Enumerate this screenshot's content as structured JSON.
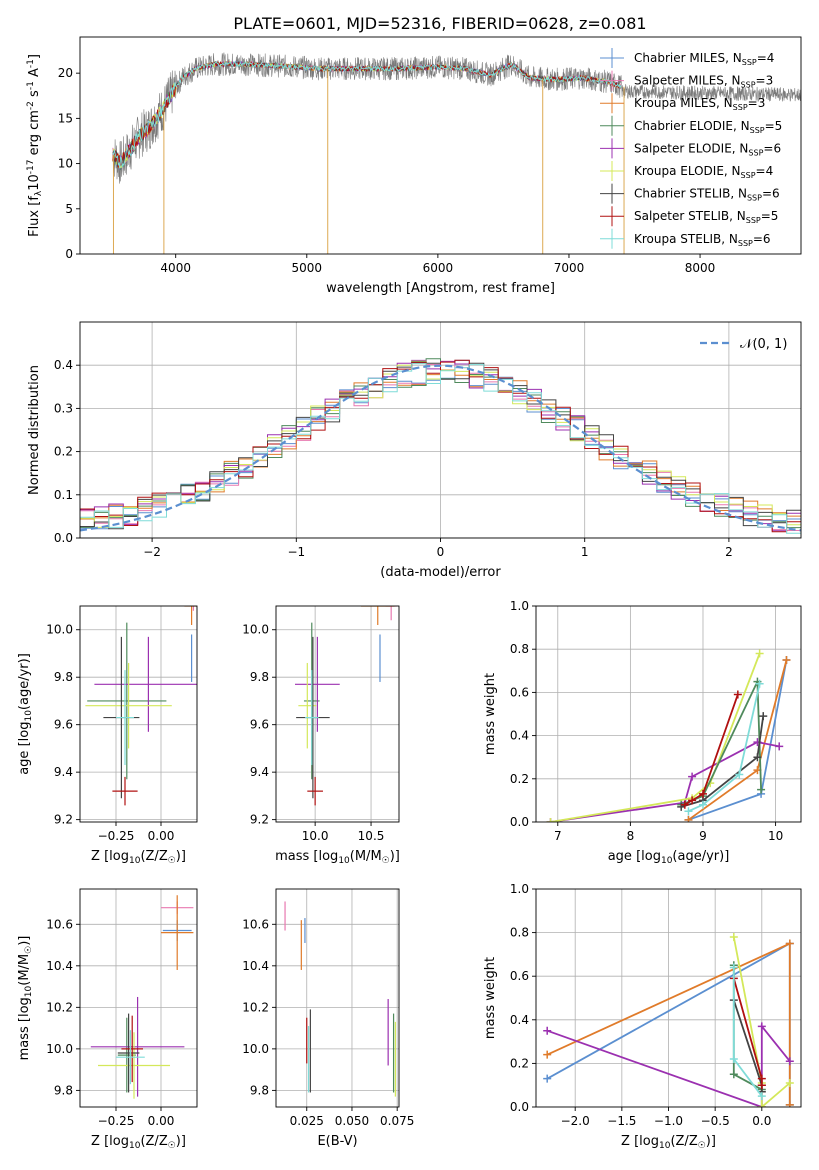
{
  "figure_title": "PLATE=0601, MJD=52316, FIBERID=0628, z=0.081",
  "colors": {
    "Chabrier MILES": "#5b8fd0",
    "Salpeter MILES": "#e879b0",
    "Kroupa MILES": "#e07b2a",
    "Chabrier ELODIE": "#4f8a5c",
    "Salpeter ELODIE": "#9b30b0",
    "Kroupa ELODIE": "#d4e85a",
    "Chabrier STELIB": "#444444",
    "Salpeter STELIB": "#b01010",
    "Kroupa STELIB": "#7fdcd8"
  },
  "chart_data": [
    {
      "id": "spectrum",
      "type": "line",
      "xlabel": "wavelength [Angstrom, rest frame]",
      "ylabel": "Flux [f_λ10^-17 erg cm^-2 s^-1 A^-1]",
      "xlim": [
        3270,
        8770
      ],
      "ylim": [
        0,
        24
      ],
      "xticks": [
        "4000",
        "5000",
        "6000",
        "7000",
        "8000"
      ],
      "yticks": [
        "0",
        "5",
        "10",
        "15",
        "20"
      ],
      "legend_location": "upper right",
      "legend": [
        {
          "name": "Chabrier MILES",
          "label": "Chabrier MILES, N",
          "sub": "SSP",
          "suffix": "=4"
        },
        {
          "name": "Salpeter MILES",
          "label": "Salpeter MILES, N",
          "sub": "SSP",
          "suffix": "=3"
        },
        {
          "name": "Kroupa MILES",
          "label": "Kroupa MILES, N",
          "sub": "SSP",
          "suffix": "=3"
        },
        {
          "name": "Chabrier ELODIE",
          "label": "Chabrier ELODIE, N",
          "sub": "SSP",
          "suffix": "=5"
        },
        {
          "name": "Salpeter ELODIE",
          "label": "Salpeter ELODIE, N",
          "sub": "SSP",
          "suffix": "=6"
        },
        {
          "name": "Kroupa ELODIE",
          "label": "Kroupa ELODIE, N",
          "sub": "SSP",
          "suffix": "=4"
        },
        {
          "name": "Chabrier STELIB",
          "label": "Chabrier STELIB, N",
          "sub": "SSP",
          "suffix": "=6"
        },
        {
          "name": "Salpeter STELIB",
          "label": "Salpeter STELIB, N",
          "sub": "SSP",
          "suffix": "=5"
        },
        {
          "name": "Kroupa STELIB",
          "label": "Kroupa STELIB, N",
          "sub": "SSP",
          "suffix": "=6"
        }
      ],
      "data_trace": {
        "name": "data",
        "color": "#7a7a7a",
        "x_range": [
          3520,
          8770
        ]
      },
      "model_continuum": {
        "x": [
          3520,
          3580,
          3650,
          3720,
          3800,
          3900,
          3960,
          4050,
          4150,
          4300,
          4500,
          4800,
          5100,
          5400,
          5700,
          6000,
          6200,
          6400,
          6560,
          6700,
          6900,
          7100,
          7300,
          7400
        ],
        "y": [
          11,
          10,
          11.5,
          13,
          14,
          16,
          17.5,
          19.5,
          20.5,
          21,
          21,
          20.8,
          20.5,
          20.5,
          20.5,
          20.7,
          20.5,
          19.8,
          21,
          19.5,
          19.3,
          19.5,
          19,
          18.5
        ]
      }
    },
    {
      "id": "residuals",
      "type": "line",
      "xlabel": "(data-model)/error",
      "ylabel": "Normed distribution",
      "xlim": [
        -2.5,
        2.5
      ],
      "ylim": [
        0,
        0.5
      ],
      "xticks": [
        "−2",
        "−1",
        "0",
        "1",
        "2"
      ],
      "yticks": [
        "0.0",
        "0.1",
        "0.2",
        "0.3",
        "0.4"
      ],
      "grid": true,
      "legend_location": "upper right",
      "reference_curve": {
        "name": "N(0,1)",
        "label": "𝒩(0, 1)",
        "color": "#5b8fd0",
        "style": "dashed"
      },
      "bin_width": 0.1
    },
    {
      "id": "age_vs_Z",
      "type": "scatter",
      "xlabel": "Z [log10(Z/Z☉)]",
      "ylabel": "age  [log10(age/yr)]",
      "xlim": [
        -0.45,
        0.2
      ],
      "ylim": [
        9.19,
        10.1
      ],
      "xticks": [
        "−0.25",
        "0.00"
      ],
      "yticks": [
        "9.2",
        "9.4",
        "9.6",
        "9.8",
        "10.0"
      ],
      "grid": true,
      "points": [
        {
          "series": "Chabrier MILES",
          "x": 0.17,
          "y": 9.88,
          "xerr": 0.0,
          "yerr": 0.1
        },
        {
          "series": "Salpeter MILES",
          "x": 0.18,
          "y": 10.1,
          "xerr": 0.0,
          "yerr": 0.02
        },
        {
          "series": "Kroupa MILES",
          "x": 0.17,
          "y": 10.1,
          "xerr": 0.04,
          "yerr": 0.08
        },
        {
          "series": "Chabrier ELODIE",
          "x": -0.19,
          "y": 9.7,
          "xerr": 0.22,
          "yerr": 0.33
        },
        {
          "series": "Salpeter ELODIE",
          "x": -0.07,
          "y": 9.77,
          "xerr": 0.3,
          "yerr": 0.2
        },
        {
          "series": "Kroupa ELODIE",
          "x": -0.18,
          "y": 9.68,
          "xerr": 0.24,
          "yerr": 0.18
        },
        {
          "series": "Chabrier STELIB",
          "x": -0.22,
          "y": 9.63,
          "xerr": 0.1,
          "yerr": 0.34
        },
        {
          "series": "Salpeter STELIB",
          "x": -0.2,
          "y": 9.32,
          "xerr": 0.07,
          "yerr": 0.06
        },
        {
          "series": "Kroupa STELIB",
          "x": -0.2,
          "y": 9.63,
          "xerr": 0.05,
          "yerr": 0.2
        }
      ]
    },
    {
      "id": "age_vs_mass",
      "type": "scatter",
      "xlabel": "mass [log10(M/M☉)]",
      "ylabel": "",
      "xlim": [
        9.65,
        10.75
      ],
      "ylim": [
        9.19,
        10.1
      ],
      "xticks": [
        "10.0",
        "10.5"
      ],
      "yticks": [
        "9.2",
        "9.4",
        "9.6",
        "9.8",
        "10.0"
      ],
      "grid": true,
      "points": [
        {
          "series": "Chabrier MILES",
          "x": 10.58,
          "y": 9.88,
          "xerr": 0.0,
          "yerr": 0.1
        },
        {
          "series": "Salpeter MILES",
          "x": 10.68,
          "y": 10.1,
          "xerr": 0.05,
          "yerr": 0.06
        },
        {
          "series": "Kroupa MILES",
          "x": 10.56,
          "y": 10.1,
          "xerr": 0.15,
          "yerr": 0.08
        },
        {
          "series": "Chabrier ELODIE",
          "x": 9.97,
          "y": 9.7,
          "xerr": 0.07,
          "yerr": 0.33
        },
        {
          "series": "Salpeter ELODIE",
          "x": 10.02,
          "y": 9.77,
          "xerr": 0.2,
          "yerr": 0.2
        },
        {
          "series": "Kroupa ELODIE",
          "x": 9.93,
          "y": 9.68,
          "xerr": 0.08,
          "yerr": 0.18
        },
        {
          "series": "Chabrier STELIB",
          "x": 9.98,
          "y": 9.63,
          "xerr": 0.15,
          "yerr": 0.34
        },
        {
          "series": "Salpeter STELIB",
          "x": 10.0,
          "y": 9.32,
          "xerr": 0.07,
          "yerr": 0.06
        },
        {
          "series": "Kroupa STELIB",
          "x": 9.97,
          "y": 9.63,
          "xerr": 0.06,
          "yerr": 0.2
        }
      ]
    },
    {
      "id": "massweight_vs_age",
      "type": "line",
      "xlabel": "age  [log10(age/yr)]",
      "ylabel": "mass weight",
      "xlim": [
        6.7,
        10.35
      ],
      "ylim": [
        0,
        1
      ],
      "xticks": [
        "7",
        "8",
        "9",
        "10"
      ],
      "yticks": [
        "0.0",
        "0.2",
        "0.4",
        "0.6",
        "0.8",
        "1.0"
      ],
      "grid": true,
      "series": [
        {
          "name": "Chabrier MILES",
          "x": [
            8.8,
            9.8,
            10.15
          ],
          "y": [
            0.01,
            0.13,
            0.75
          ]
        },
        {
          "name": "Kroupa MILES",
          "x": [
            8.8,
            9.75,
            10.15
          ],
          "y": [
            0.01,
            0.24,
            0.75
          ]
        },
        {
          "name": "Salpeter ELODIE",
          "x": [
            6.9,
            8.75,
            8.85,
            9.75,
            10.05
          ],
          "y": [
            0.0,
            0.09,
            0.21,
            0.37,
            0.35
          ]
        },
        {
          "name": "Kroupa ELODIE",
          "x": [
            6.9,
            8.85,
            9.1,
            9.78
          ],
          "y": [
            0.0,
            0.11,
            0.18,
            0.78
          ]
        },
        {
          "name": "Chabrier ELODIE",
          "x": [
            8.7,
            9.0,
            9.75,
            9.8
          ],
          "y": [
            0.08,
            0.12,
            0.65,
            0.15
          ]
        },
        {
          "name": "Chabrier STELIB",
          "x": [
            8.7,
            9.0,
            9.75,
            9.83
          ],
          "y": [
            0.07,
            0.1,
            0.3,
            0.49
          ]
        },
        {
          "name": "Salpeter STELIB",
          "x": [
            8.75,
            8.85,
            9.0,
            9.48
          ],
          "y": [
            0.08,
            0.1,
            0.13,
            0.59
          ]
        },
        {
          "name": "Kroupa STELIB",
          "x": [
            8.8,
            9.0,
            9.5,
            9.78
          ],
          "y": [
            0.05,
            0.08,
            0.22,
            0.64
          ]
        }
      ]
    },
    {
      "id": "mass_vs_Z",
      "type": "scatter",
      "xlabel": "Z [log10(Z/Z☉)]",
      "ylabel": "mass [log10(M/M☉)]",
      "xlim": [
        -0.45,
        0.2
      ],
      "ylim": [
        9.72,
        10.77
      ],
      "xticks": [
        "−0.25",
        "0.00"
      ],
      "yticks": [
        "9.8",
        "10.0",
        "10.2",
        "10.4",
        "10.6"
      ],
      "grid": true,
      "points": [
        {
          "series": "Chabrier MILES",
          "x": 0.09,
          "y": 10.57,
          "xerr": 0.08,
          "yerr": 0.05
        },
        {
          "series": "Salpeter MILES",
          "x": 0.09,
          "y": 10.68,
          "xerr": 0.09,
          "yerr": 0.03
        },
        {
          "series": "Kroupa MILES",
          "x": 0.09,
          "y": 10.56,
          "xerr": 0.09,
          "yerr": 0.18
        },
        {
          "series": "Chabrier ELODIE",
          "x": -0.19,
          "y": 9.97,
          "xerr": 0.05,
          "yerr": 0.18
        },
        {
          "series": "Salpeter ELODIE",
          "x": -0.13,
          "y": 10.01,
          "xerr": 0.26,
          "yerr": 0.24
        },
        {
          "series": "Kroupa ELODIE",
          "x": -0.15,
          "y": 9.92,
          "xerr": 0.2,
          "yerr": 0.16
        },
        {
          "series": "Chabrier STELIB",
          "x": -0.18,
          "y": 9.98,
          "xerr": 0.06,
          "yerr": 0.19
        },
        {
          "series": "Salpeter STELIB",
          "x": -0.16,
          "y": 10.0,
          "xerr": 0.06,
          "yerr": 0.16
        },
        {
          "series": "Kroupa STELIB",
          "x": -0.17,
          "y": 9.96,
          "xerr": 0.08,
          "yerr": 0.13
        }
      ]
    },
    {
      "id": "mass_vs_ebv",
      "type": "scatter",
      "xlabel": "E(B-V)",
      "ylabel": "",
      "xlim": [
        0.008,
        0.076
      ],
      "ylim": [
        9.72,
        10.77
      ],
      "xticks": [
        "0.025",
        "0.050",
        "0.075"
      ],
      "yticks": [
        "9.8",
        "10.0",
        "10.2",
        "10.4",
        "10.6"
      ],
      "grid": true,
      "points": [
        {
          "series": "Chabrier MILES",
          "x": 0.024,
          "y": 10.57,
          "xerr": 0.0,
          "yerr": 0.06
        },
        {
          "series": "Salpeter MILES",
          "x": 0.013,
          "y": 10.64,
          "xerr": 0.0,
          "yerr": 0.07
        },
        {
          "series": "Kroupa MILES",
          "x": 0.022,
          "y": 10.5,
          "xerr": 0.0,
          "yerr": 0.12
        },
        {
          "series": "Chabrier ELODIE",
          "x": 0.073,
          "y": 9.98,
          "xerr": 0.0,
          "yerr": 0.19
        },
        {
          "series": "Salpeter ELODIE",
          "x": 0.07,
          "y": 10.08,
          "xerr": 0.0,
          "yerr": 0.16
        },
        {
          "series": "Kroupa ELODIE",
          "x": 0.074,
          "y": 9.95,
          "xerr": 0.0,
          "yerr": 0.18
        },
        {
          "series": "Chabrier STELIB",
          "x": 0.027,
          "y": 9.99,
          "xerr": 0.0,
          "yerr": 0.2
        },
        {
          "series": "Salpeter STELIB",
          "x": 0.025,
          "y": 10.04,
          "xerr": 0.0,
          "yerr": 0.11
        },
        {
          "series": "Kroupa STELIB",
          "x": 0.026,
          "y": 9.95,
          "xerr": 0.0,
          "yerr": 0.16
        }
      ]
    },
    {
      "id": "massweight_vs_Z",
      "type": "line",
      "xlabel": "Z [log10(Z/Z☉)]",
      "ylabel": "mass weight",
      "xlim": [
        -2.42,
        0.42
      ],
      "ylim": [
        0,
        1
      ],
      "xticks": [
        "−2.0",
        "−1.5",
        "−1.0",
        "−0.5",
        "0.0"
      ],
      "yticks": [
        "0.0",
        "0.2",
        "0.4",
        "0.6",
        "0.8",
        "1.0"
      ],
      "grid": true,
      "series": [
        {
          "name": "Chabrier MILES",
          "x": [
            -2.3,
            0.3,
            0.3
          ],
          "y": [
            0.13,
            0.75,
            0.01
          ]
        },
        {
          "name": "Kroupa MILES",
          "x": [
            -2.3,
            0.3,
            0.3
          ],
          "y": [
            0.24,
            0.75,
            0.01
          ]
        },
        {
          "name": "Salpeter ELODIE",
          "x": [
            -2.3,
            0.0,
            0.0,
            0.3
          ],
          "y": [
            0.35,
            0.0,
            0.37,
            0.21
          ]
        },
        {
          "name": "Kroupa ELODIE",
          "x": [
            -0.3,
            0.0,
            0.0,
            0.3
          ],
          "y": [
            0.78,
            0.11,
            0.0,
            0.11
          ]
        },
        {
          "name": "Chabrier ELODIE",
          "x": [
            -0.3,
            -0.3,
            0.0
          ],
          "y": [
            0.65,
            0.15,
            0.08
          ]
        },
        {
          "name": "Chabrier STELIB",
          "x": [
            -0.3,
            0.0,
            0.0
          ],
          "y": [
            0.49,
            0.1,
            0.07
          ]
        },
        {
          "name": "Salpeter STELIB",
          "x": [
            -0.3,
            0.0,
            0.0
          ],
          "y": [
            0.59,
            0.13,
            0.1
          ]
        },
        {
          "name": "Kroupa STELIB",
          "x": [
            -0.3,
            -0.3,
            0.0
          ],
          "y": [
            0.64,
            0.22,
            0.05
          ]
        }
      ]
    }
  ]
}
